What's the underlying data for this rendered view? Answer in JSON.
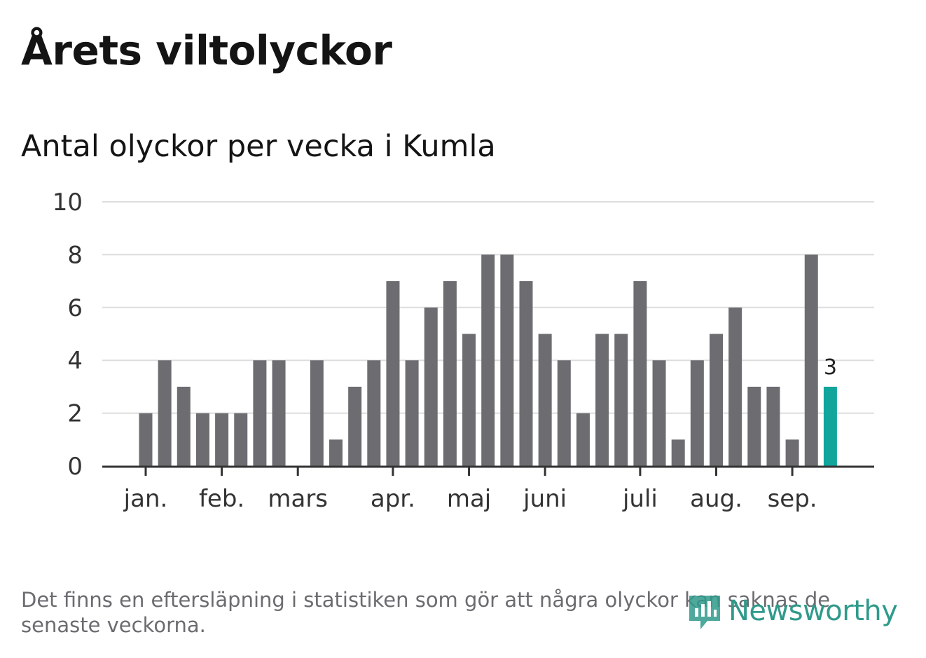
{
  "header": {
    "title": "Årets viltolyckor",
    "subtitle": "Antal olyckor per vecka i Kumla"
  },
  "footer": {
    "note": "Det finns en eftersläpning i statistiken som gör att några olyckor kan saknas de senaste veckorna.",
    "logo_text": "Newsworthy"
  },
  "colors": {
    "bar": "#6d6c71",
    "highlight": "#12a59c",
    "grid": "#dddddd",
    "axis": "#333333",
    "brand": "#2f9a8b"
  },
  "chart_data": {
    "type": "bar",
    "title": "Årets viltolyckor",
    "subtitle": "Antal olyckor per vecka i Kumla",
    "xlabel": "",
    "ylabel": "",
    "ylim": [
      0,
      10
    ],
    "yticks": [
      0,
      2,
      4,
      6,
      8,
      10
    ],
    "grid": true,
    "weeks": [
      1,
      2,
      3,
      4,
      5,
      6,
      7,
      8,
      9,
      10,
      11,
      12,
      13,
      14,
      15,
      16,
      17,
      18,
      19,
      20,
      21,
      22,
      23,
      24,
      25,
      26,
      27,
      28,
      29,
      30,
      31,
      32,
      33,
      34,
      35,
      36,
      37,
      38
    ],
    "values": [
      0,
      2,
      4,
      3,
      2,
      2,
      2,
      4,
      4,
      0,
      4,
      1,
      3,
      4,
      7,
      4,
      6,
      7,
      5,
      8,
      8,
      7,
      5,
      4,
      2,
      5,
      5,
      7,
      4,
      1,
      4,
      5,
      6,
      3,
      3,
      1,
      8,
      3
    ],
    "highlight_index": 37,
    "highlight_label": "3",
    "month_ticks": [
      {
        "label": "jan.",
        "week": 2
      },
      {
        "label": "feb.",
        "week": 6
      },
      {
        "label": "mars",
        "week": 10
      },
      {
        "label": "apr.",
        "week": 15
      },
      {
        "label": "maj",
        "week": 19
      },
      {
        "label": "juni",
        "week": 23
      },
      {
        "label": "juli",
        "week": 28
      },
      {
        "label": "aug.",
        "week": 32
      },
      {
        "label": "sep.",
        "week": 36
      }
    ]
  }
}
